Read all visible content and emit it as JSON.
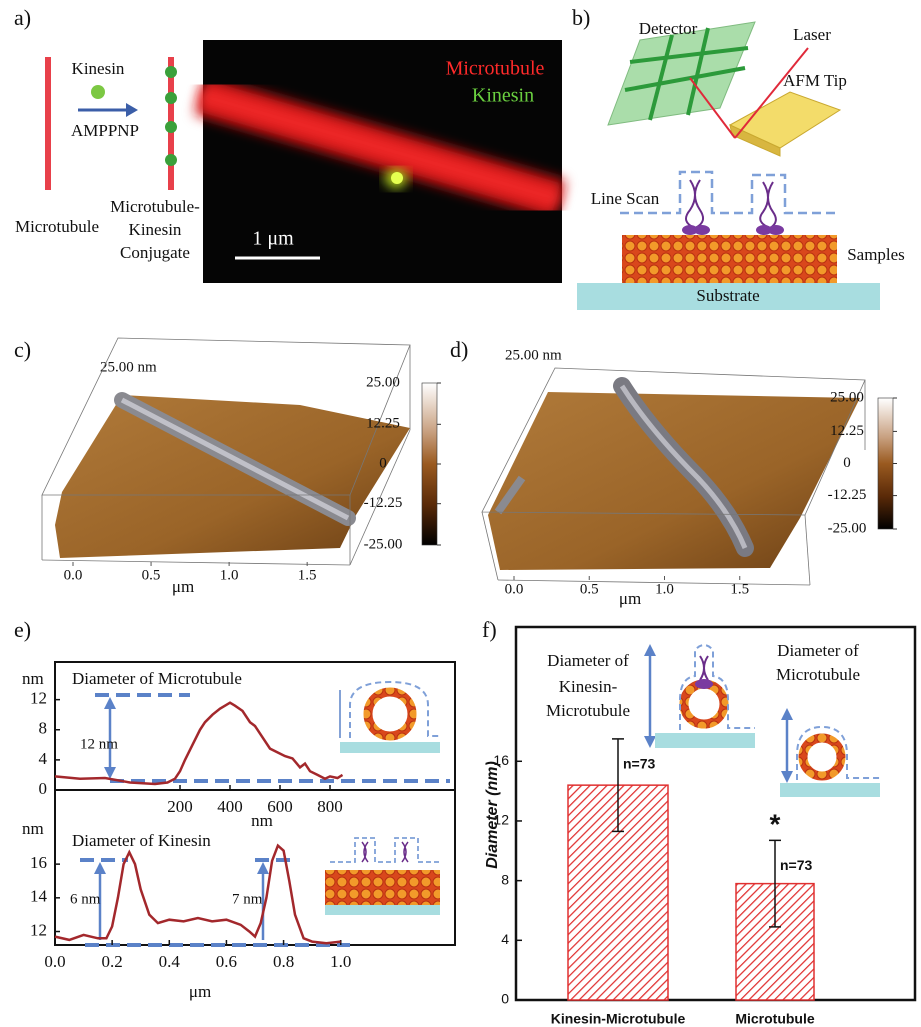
{
  "panel_a": {
    "label": "a)",
    "kinesin": "Kinesin",
    "reagent": "AMPPNP",
    "microtubule": "Microtubule",
    "conjugate": [
      "Microtubule-",
      "Kinesin",
      "Conjugate"
    ],
    "image_labels": [
      "Microtubule",
      "Kinesin"
    ],
    "scale_bar": "1 μm"
  },
  "panel_b": {
    "label": "b)",
    "detector": "Detector",
    "laser": "Laser",
    "tip": "AFM Tip",
    "line_scan": "Line Scan",
    "samples": "Samples",
    "substrate": "Substrate"
  },
  "panel_c": {
    "label": "c)",
    "height_label": "25.00 nm",
    "colorbar": {
      "lim": [
        -25,
        25
      ],
      "ticks": [
        {
          "value": 25,
          "label": "25.00"
        },
        {
          "value": 12.25,
          "label": "12.25"
        },
        0,
        {
          "value": -12.25,
          "label": "-12.25"
        },
        {
          "value": -25,
          "label": "-25.00"
        }
      ]
    },
    "xlim": [
      0,
      1.8
    ],
    "xticks": [
      {
        "value": 0,
        "label": "0.0"
      },
      0.5,
      {
        "value": 1,
        "label": "1.0"
      },
      1.5
    ],
    "xlabel": "μm"
  },
  "panel_d": {
    "label": "d)",
    "height_label": "25.00 nm",
    "colorbar": {
      "lim": [
        -25,
        25
      ],
      "ticks": [
        {
          "value": 25,
          "label": "25.00"
        },
        {
          "value": 12.25,
          "label": "12.25"
        },
        0,
        {
          "value": -12.25,
          "label": "-12.25"
        },
        {
          "value": -25,
          "label": "-25.00"
        }
      ]
    },
    "xlim": [
      0,
      2
    ],
    "xticks": [
      {
        "value": 0,
        "label": "0.0"
      },
      0.5,
      {
        "value": 1,
        "label": "1.0"
      },
      1.5
    ],
    "xlabel": "μm"
  },
  "panel_e": {
    "label": "e)"
  },
  "panel_f": {
    "label": "f)"
  },
  "chart_data": [
    {
      "type": "line",
      "title": "Diameter of Microtubule",
      "ylabel": "nm",
      "xlabel": "nm",
      "annotations": [
        "12 nm"
      ],
      "x": [
        -300,
        -200,
        -100,
        0,
        100,
        150,
        180,
        200,
        220,
        250,
        280,
        300,
        330,
        360,
        380,
        400,
        420,
        450,
        480,
        500,
        530,
        560,
        590,
        620,
        650,
        680,
        700,
        720,
        750,
        780,
        800,
        830,
        850
      ],
      "series": [
        {
          "color": "#a3282c",
          "values": [
            1.8,
            1.5,
            1.6,
            1.0,
            0.8,
            1.0,
            1.5,
            2.5,
            4,
            6,
            8,
            9,
            10,
            10.8,
            11.2,
            11.6,
            11.2,
            10.5,
            9,
            8.5,
            7,
            5.5,
            5,
            4.5,
            4.2,
            3,
            3.5,
            2.5,
            2,
            1.5,
            1.8,
            1.6,
            2.0
          ]
        }
      ],
      "xlim": [
        -300,
        1300
      ],
      "ylim": [
        0,
        17
      ],
      "xticks": [
        200,
        400,
        600,
        800
      ],
      "yticks": [
        0,
        4,
        8,
        12
      ]
    },
    {
      "type": "line",
      "title": "Diameter of Kinesin",
      "ylabel": "nm",
      "xlabel": "μm",
      "annotations": [
        "6 nm",
        "7 nm"
      ],
      "x": [
        0,
        0.05,
        0.1,
        0.15,
        0.18,
        0.2,
        0.22,
        0.24,
        0.26,
        0.28,
        0.3,
        0.33,
        0.36,
        0.4,
        0.45,
        0.5,
        0.55,
        0.6,
        0.65,
        0.68,
        0.7,
        0.72,
        0.74,
        0.76,
        0.78,
        0.8,
        0.82,
        0.84,
        0.87,
        0.9,
        0.95,
        1.0
      ],
      "series": [
        {
          "color": "#a3282c",
          "values": [
            11.7,
            11.5,
            11.8,
            11.6,
            11.6,
            12.3,
            14,
            16,
            16.7,
            16,
            14.5,
            13,
            12.5,
            12.7,
            12.6,
            12.8,
            12.6,
            12.7,
            12.4,
            12,
            11.7,
            12.5,
            14,
            16.2,
            17.1,
            16.8,
            15,
            13,
            11.6,
            11.4,
            11.3,
            11.4
          ]
        }
      ],
      "xlim": [
        0,
        1.4
      ],
      "ylim": [
        11.2,
        20.4
      ],
      "xticks": [
        {
          "value": 0,
          "label": "0.0"
        },
        0.2,
        0.4,
        0.6,
        0.8,
        {
          "value": 1,
          "label": "1.0"
        }
      ],
      "yticks": [
        12,
        14,
        16
      ]
    },
    {
      "type": "bar",
      "ylabel": "Diameter (nm)",
      "categories": [
        "Kinesin-Microtubule",
        "Microtubule"
      ],
      "values": [
        14.4,
        7.8
      ],
      "errors": [
        3.1,
        2.9
      ],
      "value_labels": [
        "n=73",
        "n=73"
      ],
      "significance": "*",
      "annotations": [
        [
          "Diameter of",
          "Kinesin-",
          "Microtubule"
        ],
        [
          "Diameter of",
          "Microtubule"
        ]
      ],
      "color": "#e03030",
      "ylim": [
        0,
        25
      ],
      "yticks": [
        0,
        4,
        8,
        12,
        16
      ]
    }
  ]
}
